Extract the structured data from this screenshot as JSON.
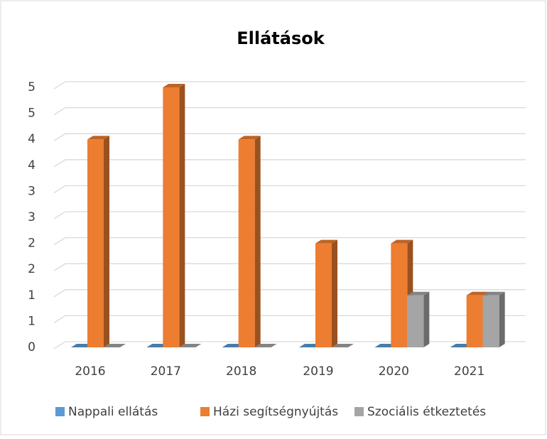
{
  "chart_data": {
    "type": "bar3d",
    "title": "Ellátások",
    "categories": [
      "2016",
      "2017",
      "2018",
      "2019",
      "2020",
      "2021"
    ],
    "series": [
      {
        "name": "Nappali ellátás",
        "color": "#5b9bd5",
        "values": [
          0,
          0,
          0,
          0,
          0,
          0
        ]
      },
      {
        "name": "Házi segítségnyújtás",
        "color": "#ed7d31",
        "values": [
          4,
          5,
          4,
          2,
          2,
          1
        ]
      },
      {
        "name": "Szociális étkeztetés",
        "color": "#a5a5a5",
        "values": [
          0,
          0,
          0,
          0,
          1,
          1
        ]
      }
    ],
    "ylim": [
      0,
      5
    ],
    "yticks": [
      0,
      {
        "value": 0.5,
        "label": "1"
      },
      1,
      {
        "value": 1.5,
        "label": "2"
      },
      2,
      {
        "value": 2.5,
        "label": "3"
      },
      3,
      {
        "value": 3.5,
        "label": "4"
      },
      4,
      {
        "value": 4.5,
        "label": "5"
      },
      5
    ],
    "grid": true,
    "legend": "bottom"
  }
}
